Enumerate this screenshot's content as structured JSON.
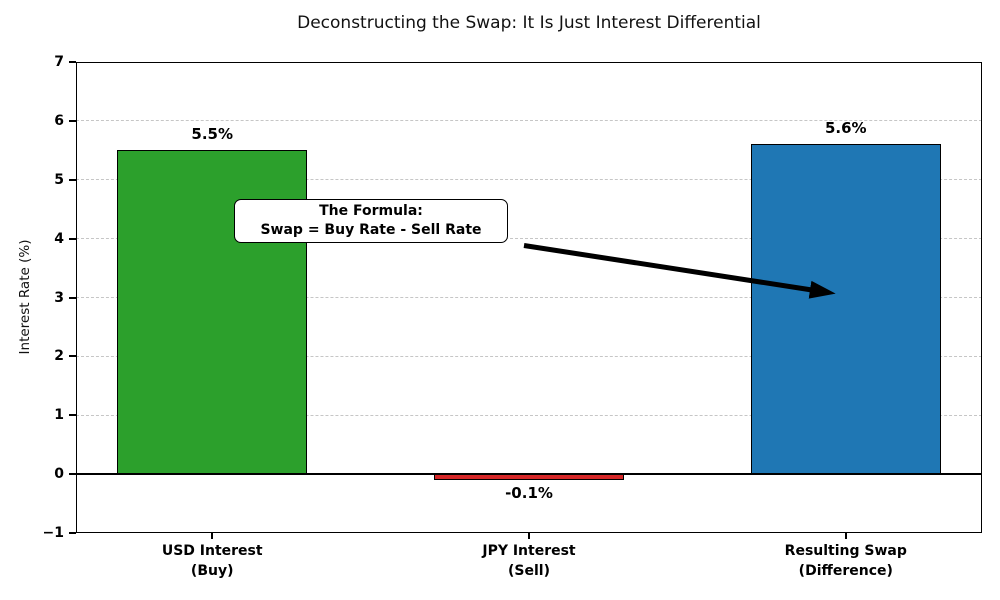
{
  "chart_data": {
    "type": "bar",
    "title": "Deconstructing the Swap: It Is Just Interest Differential",
    "xlabel": "",
    "ylabel": "Interest Rate (%)",
    "categories": [
      "USD Interest\n(Buy)",
      "JPY Interest\n(Sell)",
      "Resulting Swap\n(Difference)"
    ],
    "values": [
      5.5,
      -0.1,
      5.6
    ],
    "value_labels": [
      "5.5%",
      "-0.1%",
      "5.6%"
    ],
    "bar_colors": [
      "#2ca02c",
      "#d62728",
      "#1f77b4"
    ],
    "bar_edge_color": "#000000",
    "bar_width": 0.6,
    "ylim": [
      -1,
      7
    ],
    "yticks": [
      -1,
      0,
      1,
      2,
      3,
      4,
      5,
      6,
      7
    ],
    "ytick_labels": [
      "−1",
      "0",
      "1",
      "2",
      "3",
      "4",
      "5",
      "6",
      "7"
    ],
    "xlim": [
      -0.43,
      2.43
    ],
    "grid": {
      "axis": "y",
      "style": "dashed",
      "color": "#c6c6c6"
    },
    "zero_line_color": "#000000",
    "legend": "none",
    "annotation": {
      "line1": "The Formula:",
      "line2": "Swap = Buy Rate - Sell Rate",
      "arrow_color": "#000000",
      "arrow_target": "Resulting Swap bar"
    }
  }
}
